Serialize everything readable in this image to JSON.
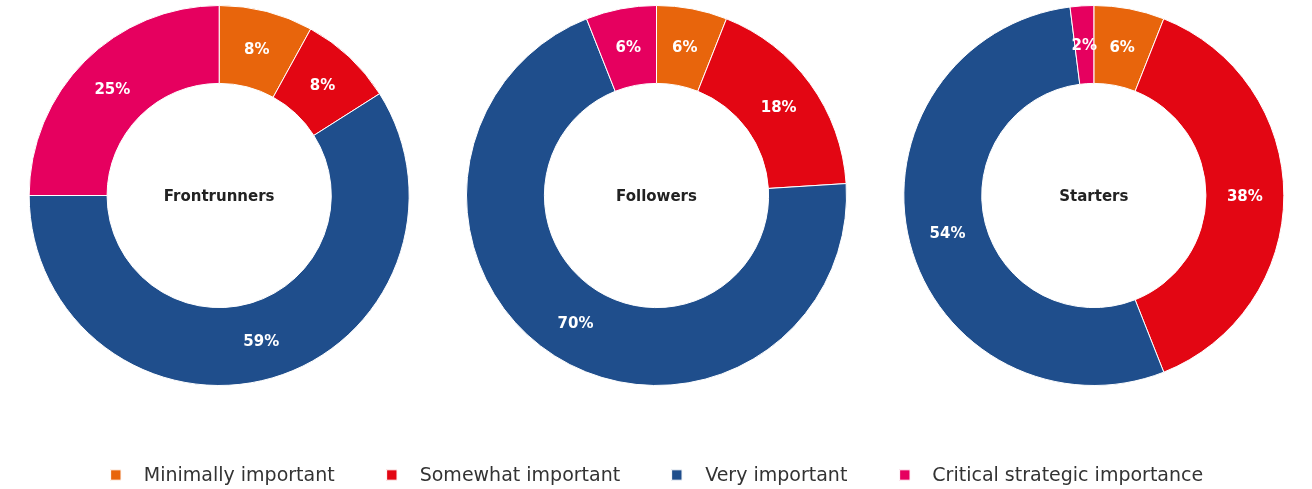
{
  "chart_data": {
    "type": "donut",
    "categories": [
      "Minimally important",
      "Somewhat important",
      "Very important",
      "Critical strategic importance"
    ],
    "colors": [
      "#e8650c",
      "#e30613",
      "#1f4e8c",
      "#e6005f"
    ],
    "legend": "bottom",
    "series": [
      {
        "name": "Frontrunners",
        "values": [
          8,
          8,
          59,
          25
        ],
        "value_labels": [
          "8%",
          "8%",
          "59%",
          "25%"
        ]
      },
      {
        "name": "Followers",
        "values": [
          6,
          18,
          70,
          6
        ],
        "value_labels": [
          "6%",
          "18%",
          "70%",
          "6%"
        ]
      },
      {
        "name": "Starters",
        "values": [
          6,
          38,
          54,
          2
        ],
        "value_labels": [
          "6%",
          "38%",
          "54%",
          "2%"
        ]
      }
    ]
  }
}
